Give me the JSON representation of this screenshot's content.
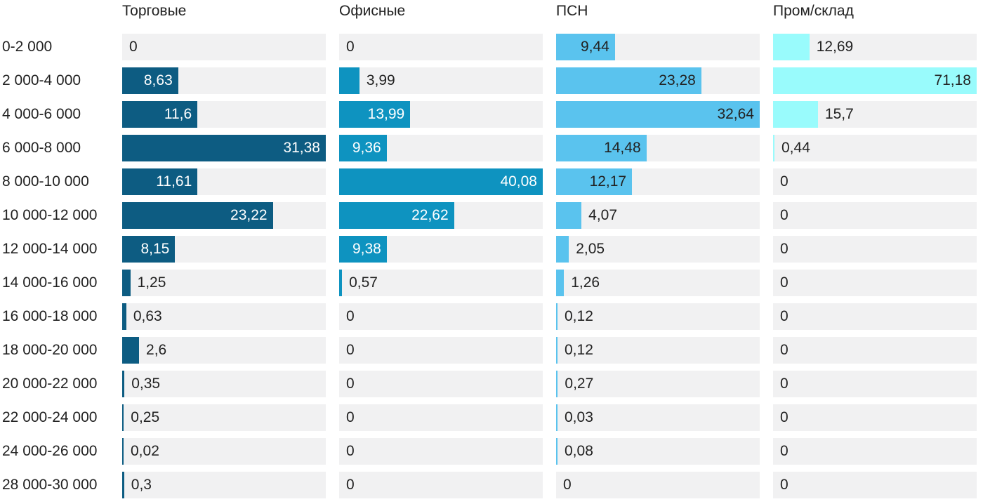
{
  "chart_data": {
    "type": "bar",
    "orientation": "horizontal",
    "layout": "small-multiples, one column per series, bars scaled to each column max",
    "grid": false,
    "legend_position": "column-headers-top",
    "title": "",
    "xlabel": "",
    "ylabel": "",
    "value_decimal_separator": ",",
    "categories": [
      "0-2 000",
      "2 000-4 000",
      "4 000-6 000",
      "6 000-8 000",
      "8 000-10 000",
      "10 000-12 000",
      "12 000-14 000",
      "14 000-16 000",
      "16 000-18 000",
      "18 000-20 000",
      "20 000-22 000",
      "22 000-24 000",
      "24 000-26 000",
      "28 000-30 000"
    ],
    "series": [
      {
        "name": "Торговые",
        "color": "#0d5c82",
        "label_color_inside": "#ffffff",
        "values": [
          0,
          8.63,
          11.6,
          31.38,
          11.61,
          23.22,
          8.15,
          1.25,
          0.63,
          2.6,
          0.35,
          0.25,
          0.02,
          0.3
        ]
      },
      {
        "name": "Офисные",
        "color": "#0e93c0",
        "label_color_inside": "#ffffff",
        "values": [
          0,
          3.99,
          13.99,
          9.36,
          40.08,
          22.62,
          9.38,
          0.57,
          0,
          0,
          0,
          0,
          0,
          0
        ]
      },
      {
        "name": "ПСН",
        "color": "#5ac3ee",
        "label_color_inside": "#222222",
        "values": [
          9.44,
          23.28,
          32.64,
          14.48,
          12.17,
          4.07,
          2.05,
          1.26,
          0.12,
          0.12,
          0.27,
          0.03,
          0.08,
          0
        ]
      },
      {
        "name": "Пром/склад",
        "color": "#99fbfc",
        "label_color_inside": "#222222",
        "values": [
          12.69,
          71.18,
          15.7,
          0.44,
          0,
          0,
          0,
          0,
          0,
          0,
          0,
          0,
          0,
          0
        ]
      }
    ],
    "colors": {
      "track": "#f1f1f2",
      "text": "#222222",
      "background": "#ffffff"
    }
  }
}
